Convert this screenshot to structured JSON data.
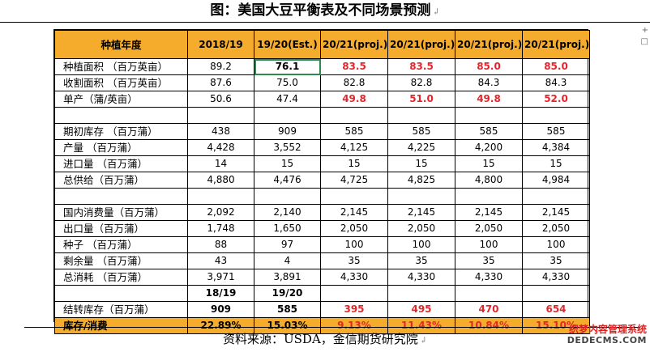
{
  "title": "图：美国大豆平衡表及不同场景预测",
  "doc_mark": "↲",
  "right_marks": [
    "+",
    "□"
  ],
  "table": {
    "header": [
      "种植年度",
      "2018/19",
      "19/20(Est.)",
      "20/21(proj.)",
      "20/21(proj.)",
      "20/21(proj.)",
      "20/21(proj.)"
    ],
    "rows": [
      {
        "kind": "data",
        "cells": [
          "种植面积 （百万英亩）",
          "89.2",
          "76.1",
          "83.5",
          "83.5",
          "85.0",
          "85.0"
        ],
        "red": [
          3,
          4,
          5,
          6
        ],
        "sel": [
          2
        ]
      },
      {
        "kind": "data",
        "cells": [
          "收割面积 （百万英亩）",
          "87.6",
          "75.0",
          "82.8",
          "82.8",
          "84.3",
          "84.3"
        ],
        "red": [],
        "sel": []
      },
      {
        "kind": "data",
        "cells": [
          "单产（蒲/英亩）",
          "50.6",
          "47.4",
          "49.8",
          "51.0",
          "49.8",
          "52.0"
        ],
        "red": [
          3,
          4,
          5,
          6
        ],
        "sel": []
      },
      {
        "kind": "blank",
        "cells": [
          "",
          "",
          "",
          "",
          "",
          "",
          ""
        ],
        "red": [],
        "sel": []
      },
      {
        "kind": "data",
        "cells": [
          "期初库存 （百万蒲）",
          "438",
          "909",
          "585",
          "585",
          "585",
          "585"
        ],
        "red": [],
        "sel": []
      },
      {
        "kind": "data",
        "cells": [
          "产量 （百万蒲）",
          "4,428",
          "3,552",
          "4,125",
          "4,225",
          "4,200",
          "4,384"
        ],
        "red": [],
        "sel": []
      },
      {
        "kind": "data",
        "cells": [
          "进口量 （百万蒲）",
          "14",
          "15",
          "15",
          "15",
          "15",
          "15"
        ],
        "red": [],
        "sel": []
      },
      {
        "kind": "data",
        "cells": [
          "总供给（百万蒲）",
          "4,880",
          "4,476",
          "4,725",
          "4,825",
          "4,800",
          "4,984"
        ],
        "red": [],
        "sel": []
      },
      {
        "kind": "blank",
        "cells": [
          "",
          "",
          "",
          "",
          "",
          "",
          ""
        ],
        "red": [],
        "sel": []
      },
      {
        "kind": "data",
        "cells": [
          "国内消费量（百万蒲）",
          "2,092",
          "2,140",
          "2,145",
          "2,145",
          "2,145",
          "2,145"
        ],
        "red": [],
        "sel": []
      },
      {
        "kind": "data",
        "cells": [
          "出口量（百万蒲）",
          "1,748",
          "1,650",
          "2,050",
          "2,050",
          "2,050",
          "2,050"
        ],
        "red": [],
        "sel": []
      },
      {
        "kind": "data",
        "cells": [
          "种子 （百万蒲）",
          "88",
          "97",
          "100",
          "100",
          "100",
          "100"
        ],
        "red": [],
        "sel": []
      },
      {
        "kind": "data",
        "cells": [
          "剩余量 （百万蒲）",
          "43",
          "4",
          "35",
          "35",
          "35",
          "35"
        ],
        "red": [],
        "sel": []
      },
      {
        "kind": "data",
        "cells": [
          "总消耗 （百万蒲）",
          "3,971",
          "3,891",
          "4,330",
          "4,330",
          "4,330",
          "4,330"
        ],
        "red": [],
        "sel": []
      },
      {
        "kind": "subhdr",
        "cells": [
          "",
          "18/19",
          "19/20",
          "",
          "",
          "",
          ""
        ],
        "red": [],
        "sel": []
      },
      {
        "kind": "data",
        "cells": [
          "结转库存（百万蒲）",
          "909",
          "585",
          "395",
          "495",
          "470",
          "654"
        ],
        "red": [
          3,
          4,
          5,
          6
        ],
        "sel": [],
        "bold": [
          1,
          2
        ]
      },
      {
        "kind": "ratio",
        "cells": [
          "库存/消费",
          "22.89%",
          "15.03%",
          "9.13%",
          "11.43%",
          "10.84%",
          "15.10%"
        ],
        "red": [
          3,
          4,
          5,
          6
        ],
        "sel": []
      }
    ]
  },
  "source": "资料来源：USDA，金信期货研究院",
  "watermark": {
    "line1": "织梦内容管理系统",
    "line2": "DEDECMS.COM"
  },
  "colors": {
    "header_bg": "#f5ac2c",
    "highlight_red": "#e3262b",
    "selection_green": "#2e8b4e"
  }
}
